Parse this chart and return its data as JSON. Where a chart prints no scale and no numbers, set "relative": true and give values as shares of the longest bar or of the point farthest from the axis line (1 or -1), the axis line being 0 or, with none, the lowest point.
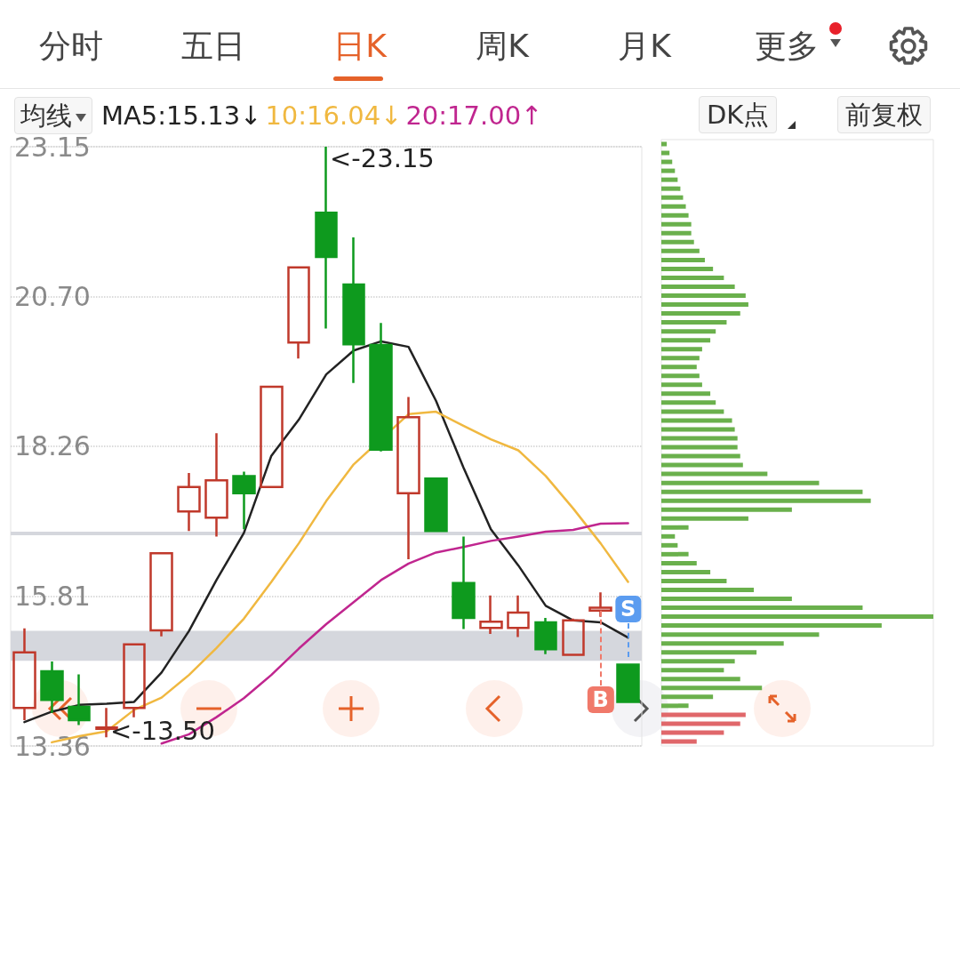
{
  "chart_data": [
    {
      "type": "candlestick",
      "categories": [
        null,
        null,
        null,
        null,
        null,
        null,
        null,
        null,
        null,
        null,
        null,
        null,
        null,
        null,
        null,
        null,
        null,
        null,
        null,
        null,
        null,
        null,
        null
      ],
      "ohlc": [
        [
          13.98,
          15.28,
          13.78,
          14.89
        ],
        [
          14.58,
          14.74,
          13.9,
          14.11
        ],
        [
          14.0,
          14.53,
          13.7,
          13.78
        ],
        [
          13.64,
          13.98,
          13.5,
          13.66
        ],
        [
          13.98,
          15.02,
          13.83,
          15.02
        ],
        [
          15.25,
          16.51,
          15.15,
          16.51
        ],
        [
          17.19,
          17.82,
          16.87,
          17.59
        ],
        [
          17.09,
          18.47,
          16.78,
          17.7
        ],
        [
          17.77,
          17.84,
          16.9,
          17.49
        ],
        [
          17.59,
          19.23,
          17.59,
          19.23
        ],
        [
          19.95,
          21.18,
          19.69,
          21.18
        ],
        [
          22.07,
          23.15,
          20.18,
          21.35
        ],
        [
          20.9,
          21.67,
          19.29,
          19.92
        ],
        [
          19.91,
          20.27,
          18.17,
          18.2
        ],
        [
          17.49,
          19.06,
          16.41,
          18.73
        ],
        [
          17.73,
          17.73,
          16.87,
          16.87
        ],
        [
          16.02,
          16.78,
          15.27,
          15.45
        ],
        [
          15.29,
          15.82,
          15.19,
          15.39
        ],
        [
          15.29,
          15.82,
          15.14,
          15.54
        ],
        [
          15.38,
          15.45,
          14.86,
          14.94
        ],
        [
          14.85,
          15.44,
          14.85,
          15.41
        ],
        [
          15.57,
          15.87,
          15.47,
          15.62
        ],
        [
          14.69,
          14.69,
          14.08,
          14.08
        ]
      ],
      "colors": [
        "#c0392b",
        "#0e9a1e",
        "#0e9a1e",
        "#c0392b",
        "#c0392b",
        "#c0392b",
        "#c0392b",
        "#c0392b",
        "#0e9a1e",
        "#c0392b",
        "#c0392b",
        "#0e9a1e",
        "#0e9a1e",
        "#0e9a1e",
        "#c0392b",
        "#0e9a1e",
        "#0e9a1e",
        "#c0392b",
        "#c0392b",
        "#0e9a1e",
        "#c0392b",
        "#c0392b",
        "#0e9a1e"
      ],
      "series": [
        {
          "name": "MA5:15.13↓",
          "color": "#222222",
          "type": "line",
          "values": [
            13.75,
            13.92,
            14.03,
            14.05,
            14.08,
            14.56,
            15.24,
            16.07,
            16.84,
            18.1,
            18.69,
            19.43,
            19.82,
            19.97,
            19.88,
            19.0,
            17.91,
            16.9,
            16.31,
            15.65,
            15.41,
            15.38,
            15.13
          ]
        },
        {
          "name": "10:16.04↓",
          "color": "#f0b840",
          "type": "line",
          "values": [
            null,
            13.42,
            13.52,
            13.6,
            13.95,
            14.15,
            14.52,
            14.96,
            15.44,
            16.04,
            16.67,
            17.36,
            17.96,
            null,
            18.78,
            18.82,
            18.59,
            18.37,
            18.19,
            17.77,
            17.24,
            16.67,
            16.04
          ]
        },
        {
          "name": "20:17.00↑",
          "color": "#c0268f",
          "type": "line",
          "values": [
            null,
            null,
            null,
            null,
            null,
            13.4,
            13.55,
            13.83,
            14.14,
            14.52,
            14.95,
            15.35,
            15.71,
            16.07,
            16.34,
            16.52,
            16.61,
            16.71,
            16.78,
            16.86,
            16.89,
            16.99,
            17.0
          ]
        }
      ],
      "ylim": [
        13.36,
        23.15
      ],
      "yticks": [
        13.36,
        15.81,
        18.26,
        {
          "value": 20.7,
          "label": "20.70"
        },
        23.15
      ],
      "tick_labels": "y",
      "grid": "y",
      "legend": "top left",
      "marker": "none",
      "ref_lines": [
        {
          "axis": "y",
          "value": 16.83,
          "color": "#d5d7dd"
        }
      ],
      "bands": [
        {
          "axis": "y",
          "from": 14.75,
          "to": 15.24,
          "color": "#d5d7dd"
        }
      ],
      "annotations": [
        "<-23.15",
        "<-13.50",
        {
          "text": "S",
          "y": 14.69
        },
        {
          "text": "B",
          "y": 15.57
        },
        "分时",
        "五日",
        "日K",
        "周K",
        "月K",
        "更多",
        "均线",
        "DK点",
        "前复权"
      ]
    },
    {
      "type": "bar",
      "orientation": "horizontal",
      "relative": true,
      "categories": [
        null,
        null,
        null,
        null,
        null,
        null,
        null,
        null,
        null,
        null,
        null,
        null,
        null,
        null,
        null,
        null,
        null,
        null,
        null,
        null,
        null,
        null,
        null,
        null,
        null,
        null,
        null,
        null,
        null,
        null,
        null,
        null,
        null,
        null,
        null,
        null,
        null,
        null,
        null,
        null,
        null,
        null,
        null,
        null,
        null,
        null,
        null,
        null,
        null,
        null,
        null,
        null,
        null,
        null,
        null,
        null,
        null,
        null,
        null,
        null,
        null,
        null,
        null,
        null,
        null,
        null,
        null,
        null
      ],
      "values": [
        0.02,
        0.03,
        0.04,
        0.05,
        0.06,
        0.07,
        0.08,
        0.09,
        0.1,
        0.11,
        0.11,
        0.12,
        0.14,
        0.16,
        0.19,
        0.23,
        0.27,
        0.31,
        0.32,
        0.29,
        0.24,
        0.2,
        0.18,
        0.15,
        0.14,
        0.13,
        0.14,
        0.15,
        0.18,
        0.2,
        0.23,
        0.26,
        0.27,
        0.28,
        0.28,
        0.29,
        0.3,
        0.39,
        0.58,
        0.74,
        0.77,
        0.48,
        0.32,
        0.1,
        0.05,
        0.06,
        0.1,
        0.13,
        0.18,
        0.24,
        0.34,
        0.48,
        0.74,
        1,
        0.81,
        0.58,
        0.45,
        0.35,
        0.27,
        0.23,
        0.29,
        0.37,
        0.19,
        0.1,
        0.31,
        0.29,
        0.23,
        0.13
      ],
      "colors": [
        "#6ab04c",
        "#6ab04c",
        "#6ab04c",
        "#6ab04c",
        "#6ab04c",
        "#6ab04c",
        "#6ab04c",
        "#6ab04c",
        "#6ab04c",
        "#6ab04c",
        "#6ab04c",
        "#6ab04c",
        "#6ab04c",
        "#6ab04c",
        "#6ab04c",
        "#6ab04c",
        "#6ab04c",
        "#6ab04c",
        "#6ab04c",
        "#6ab04c",
        "#6ab04c",
        "#6ab04c",
        "#6ab04c",
        "#6ab04c",
        "#6ab04c",
        "#6ab04c",
        "#6ab04c",
        "#6ab04c",
        "#6ab04c",
        "#6ab04c",
        "#6ab04c",
        "#6ab04c",
        "#6ab04c",
        "#6ab04c",
        "#6ab04c",
        "#6ab04c",
        "#6ab04c",
        "#6ab04c",
        "#6ab04c",
        "#6ab04c",
        "#6ab04c",
        "#6ab04c",
        "#6ab04c",
        "#6ab04c",
        "#6ab04c",
        "#6ab04c",
        "#6ab04c",
        "#6ab04c",
        "#6ab04c",
        "#6ab04c",
        "#6ab04c",
        "#6ab04c",
        "#6ab04c",
        "#6ab04c",
        "#6ab04c",
        "#6ab04c",
        "#6ab04c",
        "#6ab04c",
        "#6ab04c",
        "#6ab04c",
        "#6ab04c",
        "#6ab04c",
        "#6ab04c",
        "#6ab04c",
        "#e0676a",
        "#e0676a",
        "#e0676a",
        "#e0676a"
      ]
    }
  ]
}
